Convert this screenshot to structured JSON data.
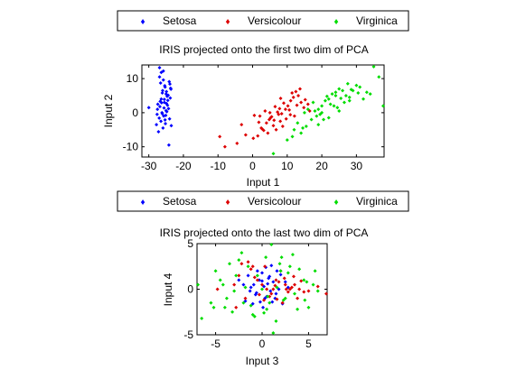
{
  "chart_data": [
    {
      "type": "scatter",
      "title": "IRIS projected onto the first two dim of PCA",
      "xlabel": "Input 1",
      "ylabel": "Input 2",
      "xlim": [
        -32,
        38
      ],
      "ylim": [
        -13,
        14
      ],
      "xticks": [
        -30,
        -20,
        -10,
        0,
        10,
        20,
        30
      ],
      "yticks": [
        -10,
        0,
        10
      ],
      "legend": {
        "placement": "top",
        "entries": [
          "Setosa",
          "Versicolour",
          "Virginica"
        ]
      },
      "series": [
        {
          "name": "Setosa",
          "color": "#0000ff",
          "x": [
            -30,
            -26.9,
            -26.4,
            -25.8,
            -26.6,
            -25.3,
            -24.9,
            -26.1,
            -23.8,
            -24.5,
            -25.5,
            -27.4,
            -26.8,
            -24.3,
            -25.0,
            -26.2,
            -27.6,
            -25.7,
            -24.0,
            -26.5,
            -25.2,
            -23.5,
            -25.9,
            -27.2,
            -24.7,
            -26.0,
            -25.4,
            -23.9,
            -24.6,
            -26.3,
            -25.1,
            -27.0,
            -24.4,
            -25.6,
            -26.7,
            -23.6,
            -24.8,
            -25.3,
            -26.4,
            -27.5,
            -24.1,
            -25.8,
            -26.9,
            -23.7,
            -24.9,
            -25.0,
            -26.1,
            -27.8,
            -24.2,
            -25.5
          ],
          "y": [
            1.5,
            10.5,
            11.8,
            9.6,
            8.7,
            7.5,
            6.2,
            5.8,
            4.3,
            3.6,
            3.0,
            2.5,
            1.8,
            1.2,
            0.6,
            0.0,
            -0.5,
            -1.0,
            -1.8,
            -2.5,
            -3.2,
            -3.8,
            -4.5,
            -5.6,
            4.8,
            6.5,
            7.9,
            8.4,
            2.2,
            2.9,
            -0.8,
            -1.6,
            5.1,
            1.4,
            3.3,
            6.9,
            0.3,
            -2.1,
            4.0,
            1.0,
            9.1,
            12.2,
            13.2,
            7.2,
            2.7,
            5.5,
            -0.3,
            -3.5,
            -9.5,
            3.9
          ]
        },
        {
          "name": "Versicolour",
          "color": "#dd0000",
          "x": [
            -9.5,
            -8,
            -4.5,
            -2,
            0.2,
            1.5,
            2.5,
            3.2,
            4.0,
            4.8,
            5.5,
            6.0,
            6.8,
            7.5,
            8.0,
            8.7,
            9.5,
            10.2,
            11.0,
            11.8,
            12.5,
            13.2,
            14.0,
            14.8,
            16.0,
            0.5,
            1.8,
            3.6,
            5.2,
            6.5,
            7.2,
            8.4,
            9.0,
            10.6,
            11.4,
            12.1,
            13.7,
            15.2,
            -3.2,
            2.1,
            4.4,
            6.2,
            7.8,
            9.7,
            12.8,
            2.8,
            5.0,
            8.1,
            10.9,
            16.5
          ],
          "y": [
            -7,
            -10,
            -9,
            -6.5,
            -7.5,
            -6.8,
            -4.5,
            -5.2,
            -3.0,
            -2.0,
            -1.2,
            -3.8,
            -5.0,
            -0.5,
            -2.5,
            -4.0,
            1.0,
            2.0,
            3.5,
            4.5,
            6.2,
            5.0,
            3.0,
            1.5,
            2.5,
            -0.8,
            -2.8,
            0.5,
            -1.5,
            1.8,
            0.2,
            -0.3,
            2.8,
            0.8,
            5.8,
            -1.0,
            7.0,
            3.8,
            -3.5,
            -1.0,
            -6.0,
            -2.2,
            1.2,
            -1.8,
            2.2,
            -4.8,
            0.0,
            4.2,
            -0.6,
            0.5
          ]
        },
        {
          "name": "Virginica",
          "color": "#00dd00",
          "x": [
            6,
            10,
            12,
            14,
            15.5,
            17,
            18,
            19,
            20,
            21,
            22,
            23,
            24,
            25,
            26,
            27,
            28,
            29,
            30,
            31,
            32,
            33,
            34,
            35,
            36.5,
            38,
            16,
            18.5,
            20.5,
            22.5,
            24.5,
            26.5,
            28.5,
            30.5,
            17.5,
            19.5,
            21.5,
            23.5,
            25.5,
            27.5,
            13,
            15,
            11.5,
            19,
            22,
            25,
            28,
            14.5,
            20,
            24
          ],
          "y": [
            -12,
            -8,
            -5,
            -6,
            -4,
            -2,
            0.5,
            1,
            2,
            3.5,
            4,
            5.5,
            6,
            7,
            6.5,
            5,
            4.5,
            6.5,
            8,
            7.5,
            4,
            6,
            5.5,
            13.5,
            10.5,
            2,
            1,
            -1,
            -2,
            2.5,
            1.5,
            3,
            6.8,
            5.8,
            3,
            -0.5,
            4.8,
            2,
            4.2,
            8.5,
            -3,
            0,
            -7,
            -3.5,
            -1.5,
            0.5,
            3.5,
            -4.5,
            0,
            5
          ]
        }
      ]
    },
    {
      "type": "scatter",
      "title": "IRIS projected onto the last two dim of PCA",
      "xlabel": "Input 3",
      "ylabel": "Input 4",
      "xlim": [
        -7,
        7
      ],
      "ylim": [
        -5,
        5
      ],
      "xticks": [
        -5,
        0,
        5
      ],
      "yticks": [
        -5,
        0,
        5
      ],
      "legend": {
        "placement": "top",
        "entries": [
          "Setosa",
          "Versicolour",
          "Virginica"
        ]
      },
      "series": [
        {
          "name": "Setosa",
          "color": "#0000ff",
          "x": [
            -1.2,
            -0.9,
            -0.6,
            -0.3,
            0.0,
            0.3,
            0.6,
            0.9,
            1.2,
            1.5,
            -1.5,
            -1.0,
            -0.5,
            0.2,
            0.5,
            0.8,
            1.1,
            -0.7,
            0.4,
            1.8,
            2.2,
            2.5,
            -2.0,
            -1.8,
            0.1,
            0.7,
            -0.2,
            1.4,
            2.8,
            -2.5,
            1.0,
            0.0,
            2.0,
            -1.3,
            1.6
          ],
          "y": [
            0.2,
            0.5,
            -0.4,
            1.0,
            1.8,
            -1.0,
            0.6,
            -0.2,
            0.8,
            -0.5,
            1.5,
            -1.6,
            2.0,
            0.3,
            -0.8,
            1.4,
            -1.4,
            -0.6,
            2.4,
            0.0,
            -1.6,
            0.8,
            0.5,
            -1.3,
            -2.0,
            1.2,
            -1.4,
            -1.0,
            0.2,
            1.0,
            2.6,
            0.9,
            1.6,
            -0.2,
            2.0
          ]
        },
        {
          "name": "Versicolour",
          "color": "#dd0000",
          "x": [
            -4.8,
            -3.0,
            -2.5,
            -1.8,
            -1.0,
            -0.5,
            0.0,
            0.5,
            1.0,
            1.5,
            2.0,
            2.5,
            3.0,
            3.5,
            4.0,
            6.0,
            7.0,
            -2.2,
            -1.2,
            0.2,
            1.2,
            2.2,
            3.2,
            4.5,
            -0.8,
            0.8,
            1.8,
            2.8,
            -1.5,
            1.4,
            2.4,
            3.8,
            5.0,
            0.3,
            -0.3,
            1.6,
            2.6,
            3.4,
            -2.8,
            4.2
          ],
          "y": [
            0.0,
            0.5,
            1.5,
            -1.0,
            2.5,
            1.0,
            0.5,
            0.0,
            -0.5,
            1.0,
            2.0,
            0.5,
            0.0,
            0.5,
            0.0,
            0.3,
            -0.5,
            2.8,
            2.2,
            -1.2,
            0.0,
            -1.5,
            0.2,
            -0.3,
            1.3,
            -0.8,
            0.8,
            -0.3,
            3.0,
            0.4,
            1.2,
            -1.0,
            -0.2,
            2.5,
            -0.6,
            -1.1,
            0.0,
            1.4,
            -2.0,
            0.9
          ]
        },
        {
          "name": "Virginica",
          "color": "#00dd00",
          "x": [
            -7,
            -6.5,
            -5.5,
            -5.0,
            -4.5,
            -4.0,
            -3.5,
            -3.0,
            -2.5,
            -2.0,
            -1.5,
            -1.0,
            -0.5,
            0.0,
            0.5,
            1.0,
            1.5,
            2.0,
            2.5,
            3.0,
            3.5,
            4.0,
            4.5,
            5.0,
            5.5,
            6.0,
            -3.8,
            -2.2,
            -1.2,
            0.4,
            1.2,
            2.3,
            3.3,
            4.6,
            -4.2,
            -2.8,
            -0.8,
            0.8,
            2.1,
            -3.2,
            1.6,
            2.8,
            3.8,
            -1.8,
            0.2,
            1.9,
            4.8,
            -5.2,
            5.7,
            0.6
          ],
          "y": [
            0.5,
            -3.2,
            -1.5,
            2.0,
            1.0,
            -2.0,
            2.8,
            -0.2,
            3.2,
            -1.5,
            2.5,
            -2.8,
            1.5,
            0.0,
            -2.2,
            5.0,
            -3.5,
            2.0,
            -1.0,
            2.5,
            -0.5,
            2.2,
            1.0,
            -2.0,
            0.5,
            -0.2,
            -1.0,
            4.0,
            -1.8,
            3.5,
            -4.8,
            -1.2,
            3.8,
            -1.2,
            0.5,
            1.5,
            -3.0,
            -1.5,
            3.5,
            -2.5,
            0.2,
            1.8,
            -2.2,
            0.2,
            -2.6,
            2.8,
            0.8,
            -2.0,
            2.0,
            -0.8
          ]
        }
      ]
    }
  ]
}
